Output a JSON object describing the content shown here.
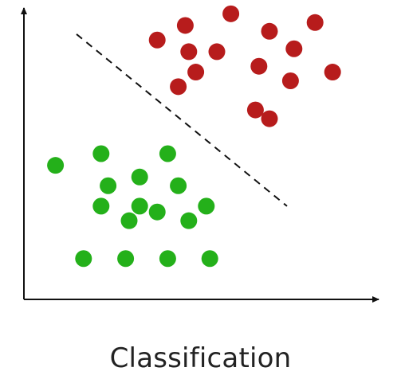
{
  "caption": "Classification",
  "colors": {
    "class_a": "#b71c1c",
    "class_b": "#24b01a",
    "axis": "#111111",
    "boundary": "#111111"
  },
  "chart_data": {
    "type": "scatter",
    "title": "",
    "xlabel": "",
    "ylabel": "",
    "grid": false,
    "legend": "none",
    "xlim": [
      0,
      100
    ],
    "ylim": [
      0,
      100
    ],
    "decision_boundary": {
      "style": "dashed",
      "from": [
        15,
        91
      ],
      "to": [
        75,
        32
      ]
    },
    "series": [
      {
        "color": "#b71c1c",
        "points": [
          [
            38,
            89
          ],
          [
            46,
            94
          ],
          [
            59,
            98
          ],
          [
            70,
            92
          ],
          [
            83,
            95
          ],
          [
            47,
            85
          ],
          [
            55,
            85
          ],
          [
            77,
            86
          ],
          [
            67,
            80
          ],
          [
            88,
            78
          ],
          [
            49,
            78
          ],
          [
            44,
            73
          ],
          [
            76,
            75
          ],
          [
            66,
            65
          ],
          [
            70,
            62
          ]
        ]
      },
      {
        "color": "#24b01a",
        "points": [
          [
            9,
            46
          ],
          [
            22,
            50
          ],
          [
            41,
            50
          ],
          [
            24,
            39
          ],
          [
            33,
            42
          ],
          [
            44,
            39
          ],
          [
            22,
            32
          ],
          [
            33,
            32
          ],
          [
            38,
            30
          ],
          [
            52,
            32
          ],
          [
            30,
            27
          ],
          [
            47,
            27
          ],
          [
            17,
            14
          ],
          [
            29,
            14
          ],
          [
            41,
            14
          ],
          [
            53,
            14
          ]
        ]
      }
    ]
  }
}
